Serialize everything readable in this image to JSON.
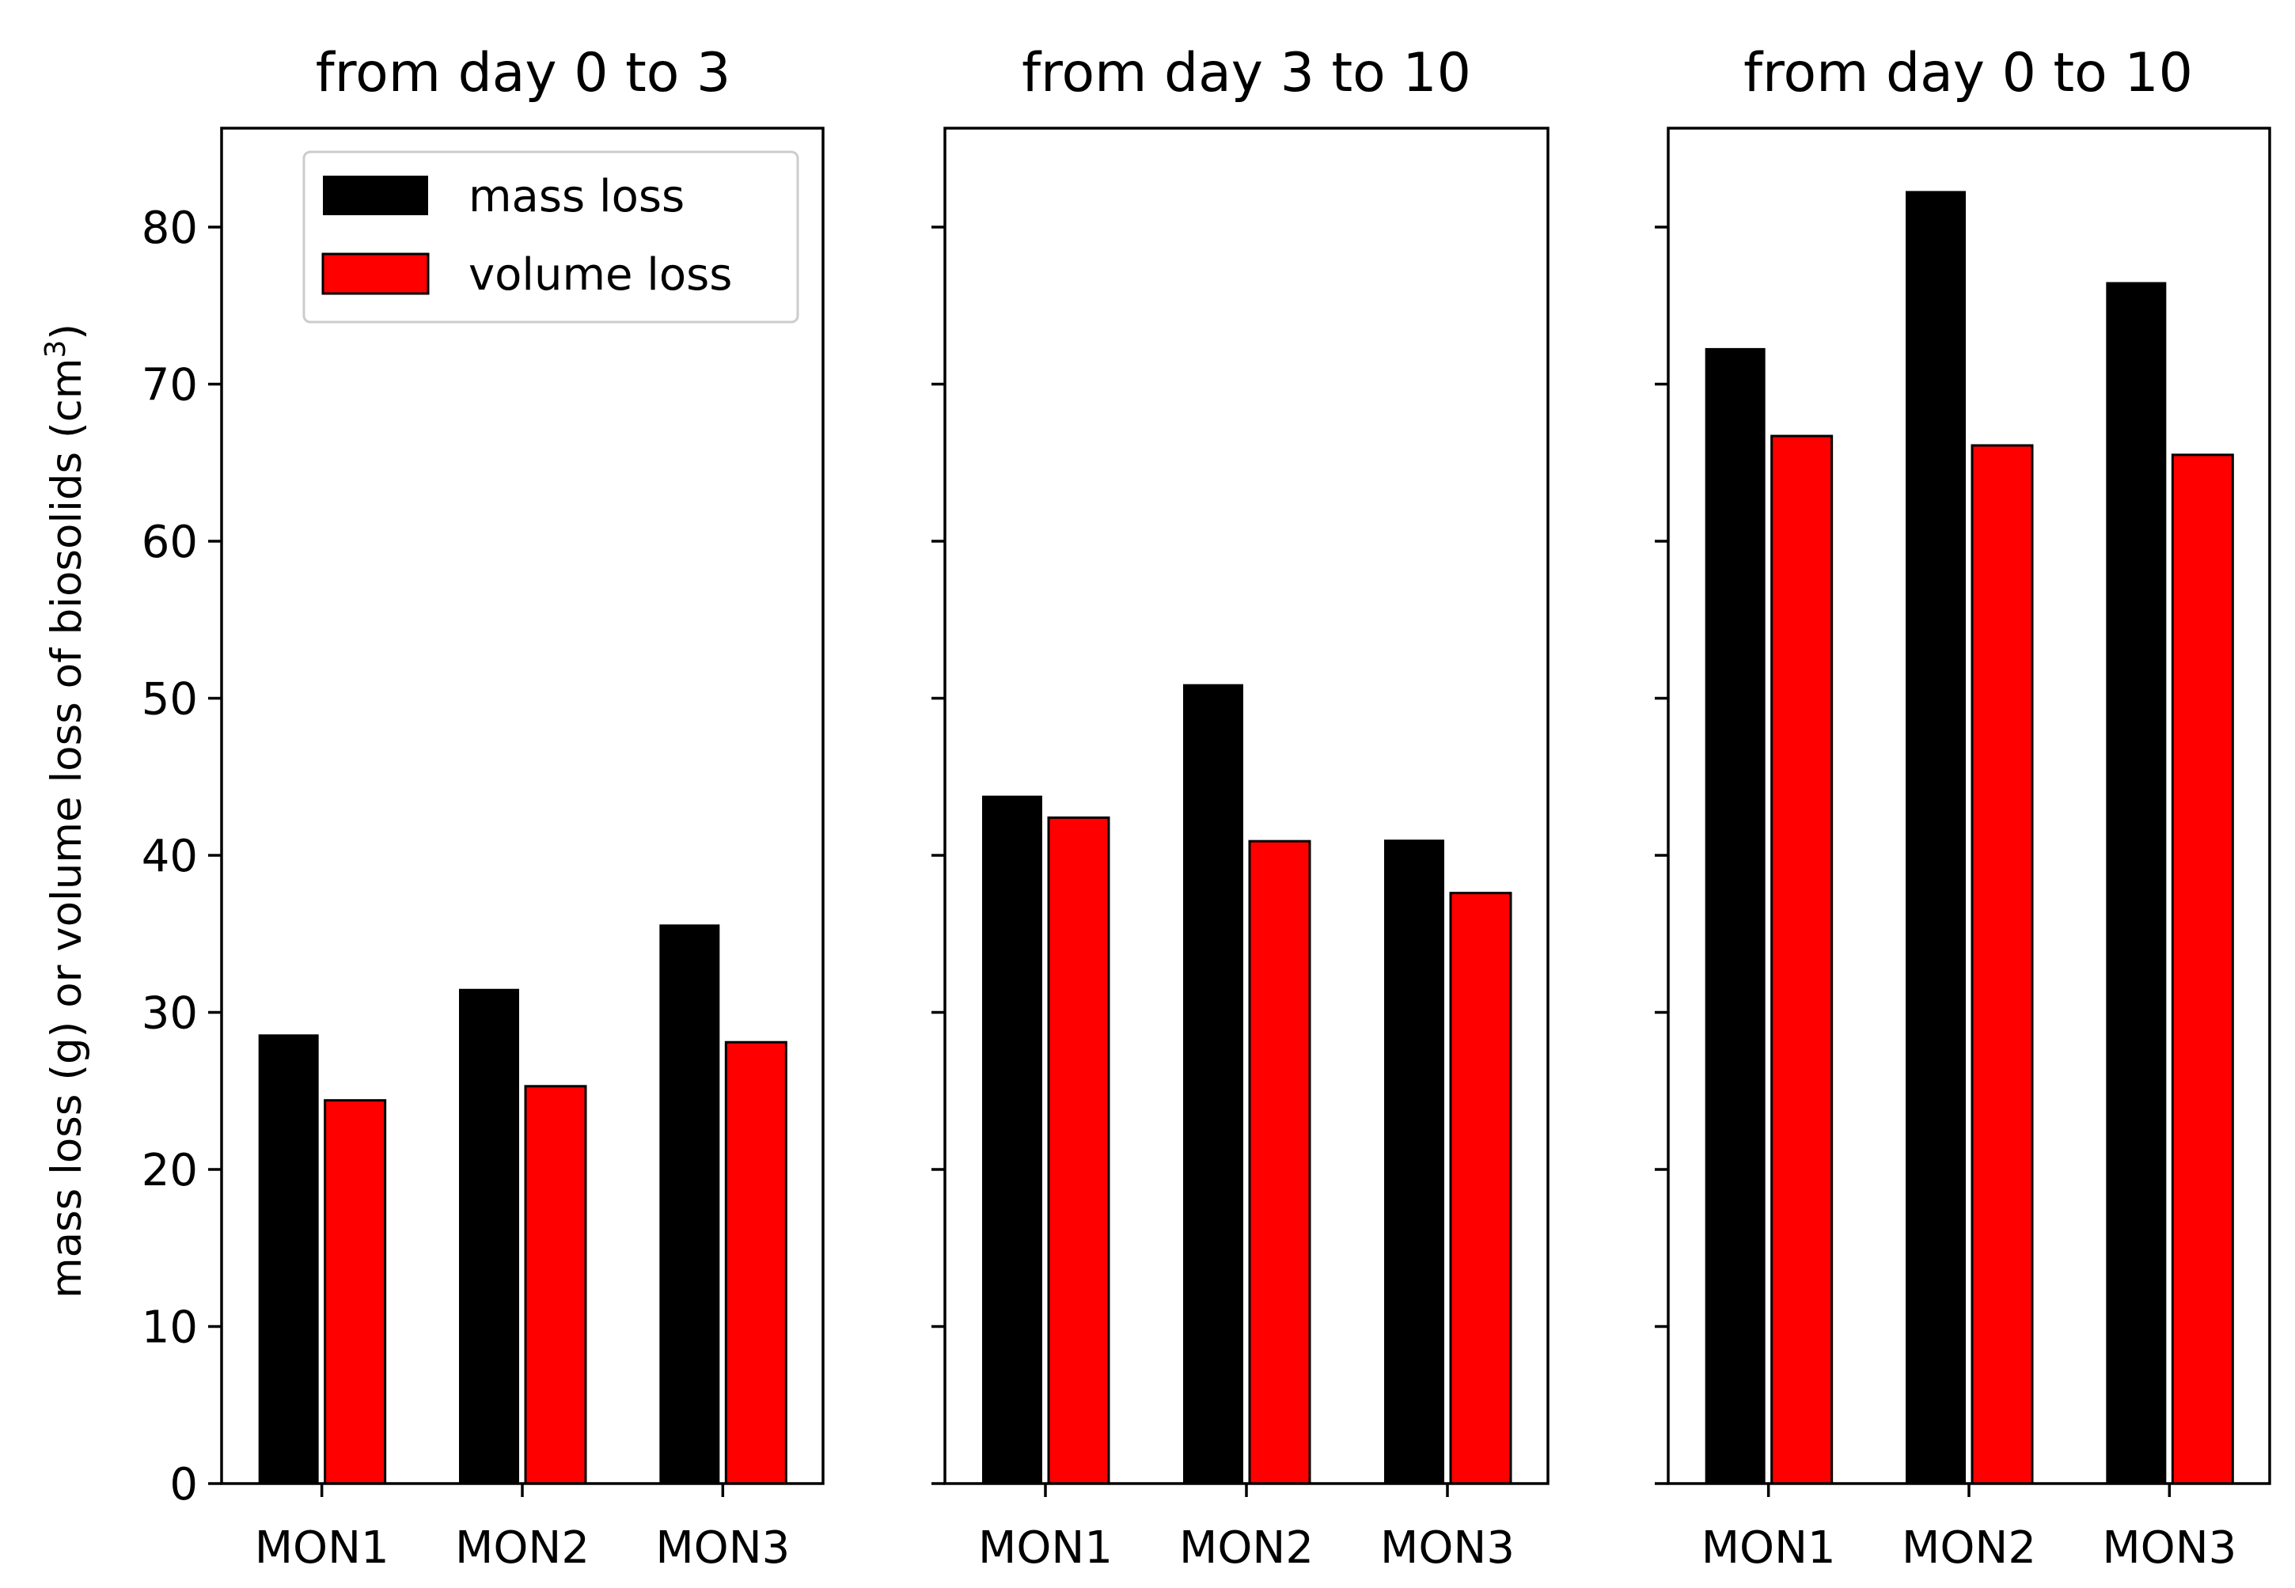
{
  "figure": {
    "ylabel_main": "mass loss (g) or volume loss of biosolids (cm",
    "ylabel_sup": "3",
    "ylabel_close": ")"
  },
  "legend": {
    "items": [
      {
        "label": "mass loss",
        "color": "#000000"
      },
      {
        "label": "volume loss",
        "color": "#ff0000"
      }
    ]
  },
  "chart_data": [
    {
      "type": "bar",
      "title": "from day 0 to 3",
      "categories": [
        "MON1",
        "MON2",
        "MON3"
      ],
      "ylim": [
        0,
        86.3
      ],
      "yticks": [
        0,
        10,
        20,
        30,
        40,
        50,
        60,
        70,
        80
      ],
      "series": [
        {
          "name": "mass loss",
          "values": [
            28.6,
            31.5,
            35.6
          ]
        },
        {
          "name": "volume loss",
          "values": [
            24.4,
            25.3,
            28.1
          ]
        }
      ]
    },
    {
      "type": "bar",
      "title": "from day 3 to 10",
      "categories": [
        "MON1",
        "MON2",
        "MON3"
      ],
      "ylim": [
        0,
        86.3
      ],
      "yticks": [
        0,
        10,
        20,
        30,
        40,
        50,
        60,
        70,
        80
      ],
      "series": [
        {
          "name": "mass loss",
          "values": [
            43.8,
            50.9,
            41.0
          ]
        },
        {
          "name": "volume loss",
          "values": [
            42.4,
            40.9,
            37.6
          ]
        }
      ]
    },
    {
      "type": "bar",
      "title": "from day 0 to 10",
      "categories": [
        "MON1",
        "MON2",
        "MON3"
      ],
      "ylim": [
        0,
        86.3
      ],
      "yticks": [
        0,
        10,
        20,
        30,
        40,
        50,
        60,
        70,
        80
      ],
      "series": [
        {
          "name": "mass loss",
          "values": [
            72.3,
            82.3,
            76.5
          ]
        },
        {
          "name": "volume loss",
          "values": [
            66.7,
            66.1,
            65.5
          ]
        }
      ]
    }
  ]
}
